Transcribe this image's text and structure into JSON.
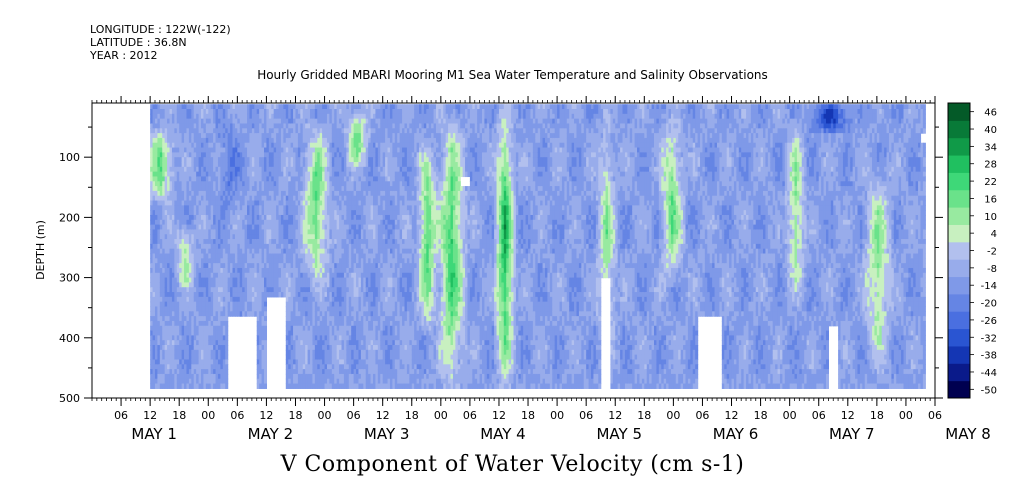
{
  "header": {
    "longitude": "LONGITUDE : 122W(-122)",
    "latitude": "LATITUDE : 36.8N",
    "year": "YEAR : 2012"
  },
  "title": "Hourly Gridded MBARI Mooring M1 Sea Water Temperature and Salinity Observations",
  "bottom_title": "V Component of Water Velocity (cm s-1)",
  "chart_data": {
    "type": "heatmap",
    "title": "Hourly Gridded MBARI Mooring M1 Sea Water Temperature and Salinity Observations",
    "variable": "V Component of Water Velocity (cm s-1)",
    "xlabel": "",
    "ylabel": "DEPTH (m)",
    "xlim_hours": [
      0,
      174
    ],
    "ylim": [
      500,
      10
    ],
    "x_ticks_hour_labels": [
      "06",
      "12",
      "18",
      "00",
      "06",
      "12",
      "18",
      "00",
      "06",
      "12",
      "18",
      "00",
      "06",
      "12",
      "18",
      "00",
      "06",
      "12",
      "18",
      "00",
      "06",
      "12",
      "18",
      "00",
      "06",
      "12",
      "18",
      "00",
      "06"
    ],
    "x_day_labels": [
      "MAY 1",
      "MAY 2",
      "MAY 3",
      "MAY 4",
      "MAY 5",
      "MAY 6",
      "MAY 7",
      "MAY 8"
    ],
    "y_ticks": [
      100,
      200,
      300,
      400,
      500
    ],
    "colorbar_levels": [
      -50,
      -44,
      -38,
      -32,
      -26,
      -20,
      -14,
      -8,
      -2,
      4,
      10,
      16,
      22,
      28,
      34,
      40,
      46
    ],
    "colorbar_labels": [
      "46",
      "40",
      "34",
      "28",
      "22",
      "16",
      "10",
      "4",
      "-2",
      "-8",
      "-14",
      "-20",
      "-26",
      "-32",
      "-38",
      "-44",
      "-50"
    ],
    "colormap": [
      "#000050",
      "#0a1a8a",
      "#1436b4",
      "#2a55d2",
      "#4a6fe0",
      "#6585e4",
      "#7f99e8",
      "#98aceb",
      "#b2c0ee",
      "#c8f0c0",
      "#98eaa0",
      "#6ae28a",
      "#3ed878",
      "#20c060",
      "#109a48",
      "#087a38",
      "#045a28"
    ],
    "valid_data_hour_range": [
      12,
      172
    ],
    "features": [
      {
        "hours": [
          12,
          16
        ],
        "depth": [
          60,
          160
        ],
        "value": 14
      },
      {
        "hours": [
          18,
          20
        ],
        "depth": [
          220,
          300
        ],
        "value": 8
      },
      {
        "hours": [
          44,
          48
        ],
        "depth": [
          50,
          300
        ],
        "value": 14
      },
      {
        "hours": [
          53,
          56
        ],
        "depth": [
          30,
          100
        ],
        "value": 12
      },
      {
        "hours": [
          68,
          70
        ],
        "depth": [
          80,
          380
        ],
        "value": 16
      },
      {
        "hours": [
          72,
          76
        ],
        "depth": [
          30,
          480
        ],
        "value": 18
      },
      {
        "hours": [
          84,
          86
        ],
        "depth": [
          20,
          480
        ],
        "value": 22
      },
      {
        "hours": [
          105,
          107
        ],
        "depth": [
          40,
          420
        ],
        "value": 8
      },
      {
        "hours": [
          118,
          121
        ],
        "depth": [
          40,
          300
        ],
        "value": 12
      },
      {
        "hours": [
          144,
          146
        ],
        "depth": [
          50,
          320
        ],
        "value": 10
      },
      {
        "hours": [
          160,
          164
        ],
        "depth": [
          120,
          440
        ],
        "value": 10
      },
      {
        "hours": [
          148,
          156
        ],
        "depth": [
          20,
          40
        ],
        "value": -26
      },
      {
        "hours": [
          26,
          30
        ],
        "depth": [
          40,
          180
        ],
        "value": -14
      }
    ],
    "gaps": [
      {
        "hours": [
          28,
          34
        ],
        "depth_from": 365
      },
      {
        "hours": [
          36,
          40
        ],
        "depth_from": 335
      },
      {
        "hours": [
          105,
          107
        ],
        "depth_from": 300
      },
      {
        "hours": [
          125,
          130
        ],
        "depth_from": 365
      },
      {
        "hours": [
          152,
          154
        ],
        "depth_from": 380
      },
      {
        "hours": [
          76,
          78
        ],
        "depth": [
          135,
          148
        ]
      },
      {
        "hours": [
          171,
          173
        ],
        "depth": [
          58,
          75
        ]
      }
    ]
  }
}
